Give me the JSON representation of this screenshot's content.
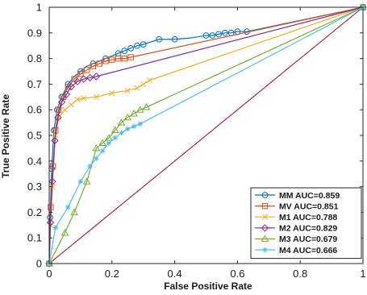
{
  "chart_data": {
    "type": "line",
    "xlabel": "False Positive Rate",
    "ylabel": "True Positive Rate",
    "xlim": [
      0,
      1
    ],
    "ylim": [
      0,
      1
    ],
    "x_ticks": [
      "0",
      "0.2",
      "0.4",
      "0.6",
      "0.8",
      "1"
    ],
    "y_ticks": [
      "0",
      "0.1",
      "0.2",
      "0.3",
      "0.4",
      "0.5",
      "0.6",
      "0.7",
      "0.8",
      "0.9",
      "1"
    ],
    "grid": false,
    "legend_position": "bottom-right",
    "diagonal_color": "#A2142F",
    "series": [
      {
        "name": "MM AUC=0.859",
        "color": "#0072BD",
        "marker": "circle",
        "points": [
          [
            0,
            0
          ],
          [
            0.003,
            0.18
          ],
          [
            0.008,
            0.37
          ],
          [
            0.015,
            0.52
          ],
          [
            0.025,
            0.6
          ],
          [
            0.04,
            0.65
          ],
          [
            0.06,
            0.7
          ],
          [
            0.08,
            0.73
          ],
          [
            0.1,
            0.75
          ],
          [
            0.12,
            0.77
          ],
          [
            0.14,
            0.78
          ],
          [
            0.16,
            0.79
          ],
          [
            0.18,
            0.8
          ],
          [
            0.2,
            0.81
          ],
          [
            0.22,
            0.82
          ],
          [
            0.24,
            0.83
          ],
          [
            0.26,
            0.84
          ],
          [
            0.28,
            0.85
          ],
          [
            0.3,
            0.855
          ],
          [
            0.35,
            0.875
          ],
          [
            0.4,
            0.875
          ],
          [
            0.45,
            0.88
          ],
          [
            0.5,
            0.89
          ],
          [
            0.52,
            0.89
          ],
          [
            0.54,
            0.895
          ],
          [
            0.56,
            0.9
          ],
          [
            0.58,
            0.9
          ],
          [
            0.6,
            0.905
          ],
          [
            0.63,
            0.905
          ],
          [
            1,
            1
          ]
        ],
        "marker_points": [
          [
            0,
            0
          ],
          [
            0.003,
            0.18
          ],
          [
            0.008,
            0.37
          ],
          [
            0.015,
            0.52
          ],
          [
            0.025,
            0.6
          ],
          [
            0.04,
            0.65
          ],
          [
            0.06,
            0.7
          ],
          [
            0.1,
            0.75
          ],
          [
            0.14,
            0.78
          ],
          [
            0.18,
            0.8
          ],
          [
            0.22,
            0.82
          ],
          [
            0.24,
            0.83
          ],
          [
            0.26,
            0.84
          ],
          [
            0.28,
            0.85
          ],
          [
            0.3,
            0.855
          ],
          [
            0.35,
            0.875
          ],
          [
            0.4,
            0.875
          ],
          [
            0.5,
            0.89
          ],
          [
            0.52,
            0.89
          ],
          [
            0.54,
            0.895
          ],
          [
            0.56,
            0.9
          ],
          [
            0.58,
            0.9
          ],
          [
            0.6,
            0.905
          ],
          [
            0.63,
            0.905
          ],
          [
            1,
            1
          ]
        ]
      },
      {
        "name": "MV AUC=0.851",
        "color": "#D95319",
        "marker": "square",
        "points": [
          [
            0,
            0
          ],
          [
            0.005,
            0.22
          ],
          [
            0.012,
            0.38
          ],
          [
            0.02,
            0.52
          ],
          [
            0.03,
            0.6
          ],
          [
            0.045,
            0.65
          ],
          [
            0.06,
            0.69
          ],
          [
            0.08,
            0.72
          ],
          [
            0.1,
            0.74
          ],
          [
            0.12,
            0.755
          ],
          [
            0.14,
            0.77
          ],
          [
            0.16,
            0.78
          ],
          [
            0.18,
            0.79
          ],
          [
            0.2,
            0.795
          ],
          [
            0.22,
            0.8
          ],
          [
            0.24,
            0.8
          ],
          [
            0.26,
            0.805
          ],
          [
            1,
            1
          ]
        ],
        "marker_points": [
          [
            0,
            0
          ],
          [
            0.005,
            0.22
          ],
          [
            0.012,
            0.38
          ],
          [
            0.02,
            0.52
          ],
          [
            0.03,
            0.6
          ],
          [
            0.045,
            0.65
          ],
          [
            0.06,
            0.69
          ],
          [
            0.08,
            0.72
          ],
          [
            0.1,
            0.74
          ],
          [
            0.12,
            0.755
          ],
          [
            0.14,
            0.77
          ],
          [
            0.16,
            0.78
          ],
          [
            0.18,
            0.79
          ],
          [
            0.2,
            0.795
          ],
          [
            0.22,
            0.8
          ],
          [
            0.24,
            0.8
          ],
          [
            0.26,
            0.805
          ],
          [
            1,
            1
          ]
        ]
      },
      {
        "name": "M1 AUC=0.788",
        "color": "#EDB120",
        "marker": "x",
        "points": [
          [
            0,
            0
          ],
          [
            0.005,
            0.15
          ],
          [
            0.01,
            0.3
          ],
          [
            0.02,
            0.5
          ],
          [
            0.03,
            0.57
          ],
          [
            0.05,
            0.6
          ],
          [
            0.07,
            0.62
          ],
          [
            0.09,
            0.64
          ],
          [
            0.11,
            0.645
          ],
          [
            0.15,
            0.65
          ],
          [
            0.2,
            0.665
          ],
          [
            0.25,
            0.675
          ],
          [
            0.28,
            0.685
          ],
          [
            0.3,
            0.7
          ],
          [
            0.32,
            0.715
          ],
          [
            1,
            1
          ]
        ],
        "marker_points": [
          [
            0,
            0
          ],
          [
            0.005,
            0.15
          ],
          [
            0.01,
            0.3
          ],
          [
            0.02,
            0.5
          ],
          [
            0.03,
            0.57
          ],
          [
            0.05,
            0.6
          ],
          [
            0.07,
            0.62
          ],
          [
            0.09,
            0.64
          ],
          [
            0.11,
            0.645
          ],
          [
            0.15,
            0.65
          ],
          [
            0.2,
            0.665
          ],
          [
            0.25,
            0.675
          ],
          [
            0.28,
            0.685
          ],
          [
            0.3,
            0.7
          ],
          [
            0.32,
            0.715
          ],
          [
            1,
            1
          ]
        ]
      },
      {
        "name": "M2 AUC=0.829",
        "color": "#7E2F8E",
        "marker": "diamond",
        "points": [
          [
            0,
            0
          ],
          [
            0.004,
            0.16
          ],
          [
            0.01,
            0.32
          ],
          [
            0.018,
            0.48
          ],
          [
            0.028,
            0.57
          ],
          [
            0.04,
            0.63
          ],
          [
            0.055,
            0.66
          ],
          [
            0.07,
            0.69
          ],
          [
            0.09,
            0.71
          ],
          [
            0.11,
            0.72
          ],
          [
            0.13,
            0.725
          ],
          [
            0.15,
            0.73
          ],
          [
            1,
            1
          ]
        ],
        "marker_points": [
          [
            0,
            0
          ],
          [
            0.004,
            0.16
          ],
          [
            0.01,
            0.32
          ],
          [
            0.018,
            0.48
          ],
          [
            0.028,
            0.57
          ],
          [
            0.04,
            0.63
          ],
          [
            0.055,
            0.66
          ],
          [
            0.07,
            0.69
          ],
          [
            0.09,
            0.71
          ],
          [
            0.11,
            0.72
          ],
          [
            0.13,
            0.725
          ],
          [
            0.15,
            0.73
          ],
          [
            1,
            1
          ]
        ]
      },
      {
        "name": "M3 AUC=0.679",
        "color": "#77AC30",
        "marker": "triangle",
        "points": [
          [
            0,
            0
          ],
          [
            0.05,
            0.12
          ],
          [
            0.08,
            0.2
          ],
          [
            0.12,
            0.32
          ],
          [
            0.15,
            0.45
          ],
          [
            0.17,
            0.47
          ],
          [
            0.19,
            0.49
          ],
          [
            0.21,
            0.52
          ],
          [
            0.23,
            0.55
          ],
          [
            0.25,
            0.57
          ],
          [
            0.27,
            0.585
          ],
          [
            0.29,
            0.6
          ],
          [
            0.31,
            0.61
          ],
          [
            1,
            1
          ]
        ],
        "marker_points": [
          [
            0,
            0
          ],
          [
            0.05,
            0.12
          ],
          [
            0.08,
            0.2
          ],
          [
            0.12,
            0.32
          ],
          [
            0.15,
            0.45
          ],
          [
            0.17,
            0.47
          ],
          [
            0.19,
            0.49
          ],
          [
            0.21,
            0.52
          ],
          [
            0.23,
            0.55
          ],
          [
            0.25,
            0.57
          ],
          [
            0.27,
            0.585
          ],
          [
            0.29,
            0.6
          ],
          [
            0.31,
            0.61
          ],
          [
            1,
            1
          ]
        ]
      },
      {
        "name": "M4 AUC=0.666",
        "color": "#4DBEEE",
        "marker": "asterisk",
        "points": [
          [
            0,
            0
          ],
          [
            0.02,
            0.14
          ],
          [
            0.06,
            0.22
          ],
          [
            0.1,
            0.32
          ],
          [
            0.13,
            0.38
          ],
          [
            0.15,
            0.41
          ],
          [
            0.17,
            0.44
          ],
          [
            0.19,
            0.47
          ],
          [
            0.21,
            0.49
          ],
          [
            0.23,
            0.51
          ],
          [
            0.25,
            0.525
          ],
          [
            0.27,
            0.535
          ],
          [
            0.29,
            0.545
          ],
          [
            1,
            1
          ]
        ],
        "marker_points": [
          [
            0,
            0
          ],
          [
            0.02,
            0.14
          ],
          [
            0.06,
            0.22
          ],
          [
            0.1,
            0.32
          ],
          [
            0.13,
            0.38
          ],
          [
            0.15,
            0.41
          ],
          [
            0.17,
            0.44
          ],
          [
            0.19,
            0.47
          ],
          [
            0.21,
            0.49
          ],
          [
            0.23,
            0.51
          ],
          [
            0.25,
            0.525
          ],
          [
            0.27,
            0.535
          ],
          [
            0.29,
            0.545
          ],
          [
            1,
            1
          ]
        ]
      }
    ]
  }
}
